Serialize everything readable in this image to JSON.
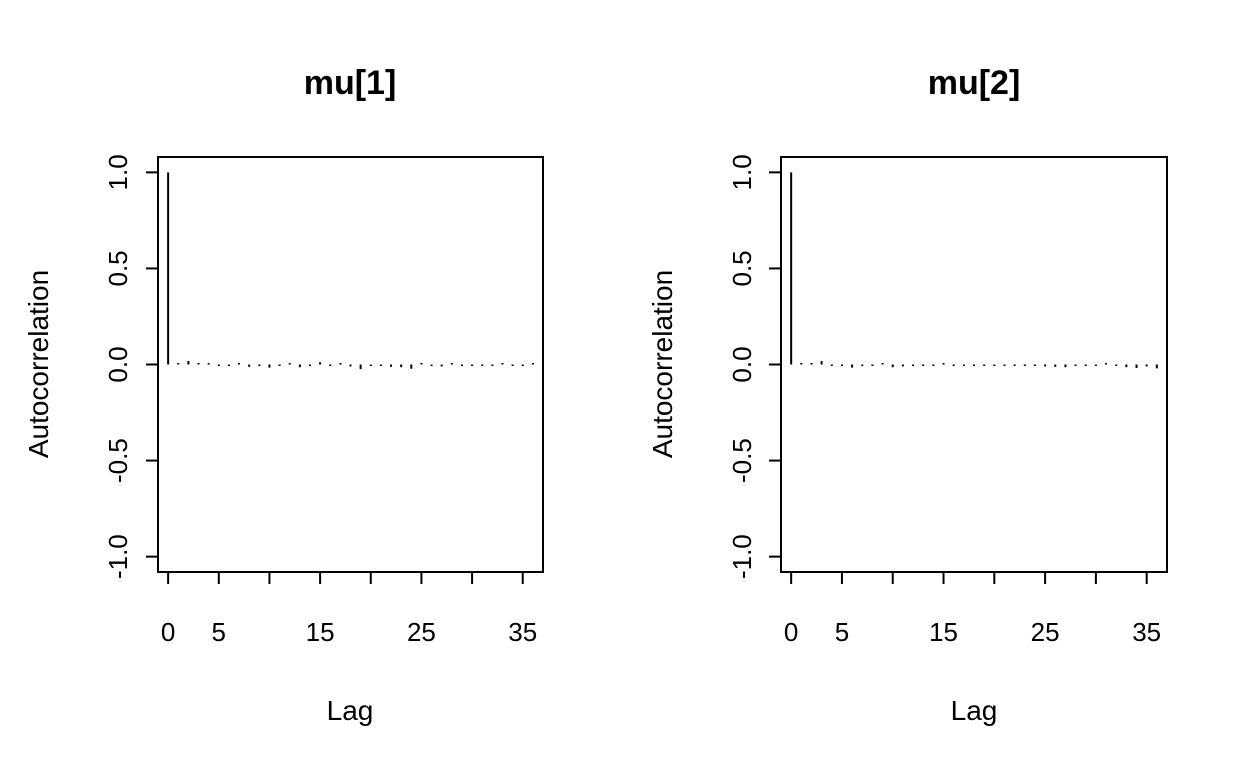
{
  "chart_data": [
    {
      "type": "bar",
      "title": "mu[1]",
      "xlabel": "Lag",
      "ylabel": "Autocorrelation",
      "xlim": [
        -1,
        37
      ],
      "ylim": [
        -1.08,
        1.08
      ],
      "xticks": [
        0,
        5,
        10,
        15,
        20,
        25,
        30,
        35
      ],
      "xtick_labels": [
        "0",
        "5",
        "",
        "15",
        "",
        "25",
        "",
        "35"
      ],
      "yticks": [
        1.0,
        0.5,
        0.0,
        -0.5,
        -1.0
      ],
      "ytick_labels": [
        "1.0",
        "0.5",
        "0.0",
        "-0.5",
        "-1.0"
      ],
      "grid": false,
      "x": [
        0,
        1,
        2,
        3,
        4,
        5,
        6,
        7,
        8,
        9,
        10,
        11,
        12,
        13,
        14,
        15,
        16,
        17,
        18,
        19,
        20,
        21,
        22,
        23,
        24,
        25,
        26,
        27,
        28,
        29,
        30,
        31,
        32,
        33,
        34,
        35,
        36
      ],
      "values": [
        1.0,
        0.005,
        0.018,
        0.008,
        0.002,
        -0.004,
        -0.002,
        0.003,
        -0.012,
        -0.004,
        -0.016,
        -0.006,
        0.004,
        -0.014,
        -0.008,
        0.012,
        -0.006,
        0.004,
        -0.01,
        -0.024,
        -0.004,
        -0.008,
        -0.012,
        -0.014,
        -0.022,
        0.008,
        -0.006,
        -0.01,
        0.002,
        -0.004,
        -0.008,
        -0.006,
        -0.004,
        0.002,
        -0.006,
        -0.004,
        0.004
      ]
    },
    {
      "type": "bar",
      "title": "mu[2]",
      "xlabel": "Lag",
      "ylabel": "Autocorrelation",
      "xlim": [
        -1,
        37
      ],
      "ylim": [
        -1.08,
        1.08
      ],
      "xticks": [
        0,
        5,
        10,
        15,
        20,
        25,
        30,
        35
      ],
      "xtick_labels": [
        "0",
        "5",
        "",
        "15",
        "",
        "25",
        "",
        "35"
      ],
      "yticks": [
        1.0,
        0.5,
        0.0,
        -0.5,
        -1.0
      ],
      "ytick_labels": [
        "1.0",
        "0.5",
        "0.0",
        "-0.5",
        "-1.0"
      ],
      "grid": false,
      "x": [
        0,
        1,
        2,
        3,
        4,
        5,
        6,
        7,
        8,
        9,
        10,
        11,
        12,
        13,
        14,
        15,
        16,
        17,
        18,
        19,
        20,
        21,
        22,
        23,
        24,
        25,
        26,
        27,
        28,
        29,
        30,
        31,
        32,
        33,
        34,
        35,
        36
      ],
      "values": [
        1.0,
        0.004,
        0.006,
        0.018,
        -0.004,
        -0.006,
        -0.016,
        -0.004,
        -0.006,
        0.002,
        -0.014,
        -0.01,
        -0.008,
        -0.006,
        -0.004,
        0.004,
        -0.004,
        -0.006,
        -0.008,
        -0.004,
        -0.006,
        -0.004,
        -0.002,
        -0.006,
        -0.008,
        -0.01,
        -0.012,
        -0.014,
        -0.004,
        -0.006,
        -0.004,
        0.008,
        -0.006,
        -0.014,
        -0.018,
        -0.01,
        -0.02
      ]
    }
  ]
}
